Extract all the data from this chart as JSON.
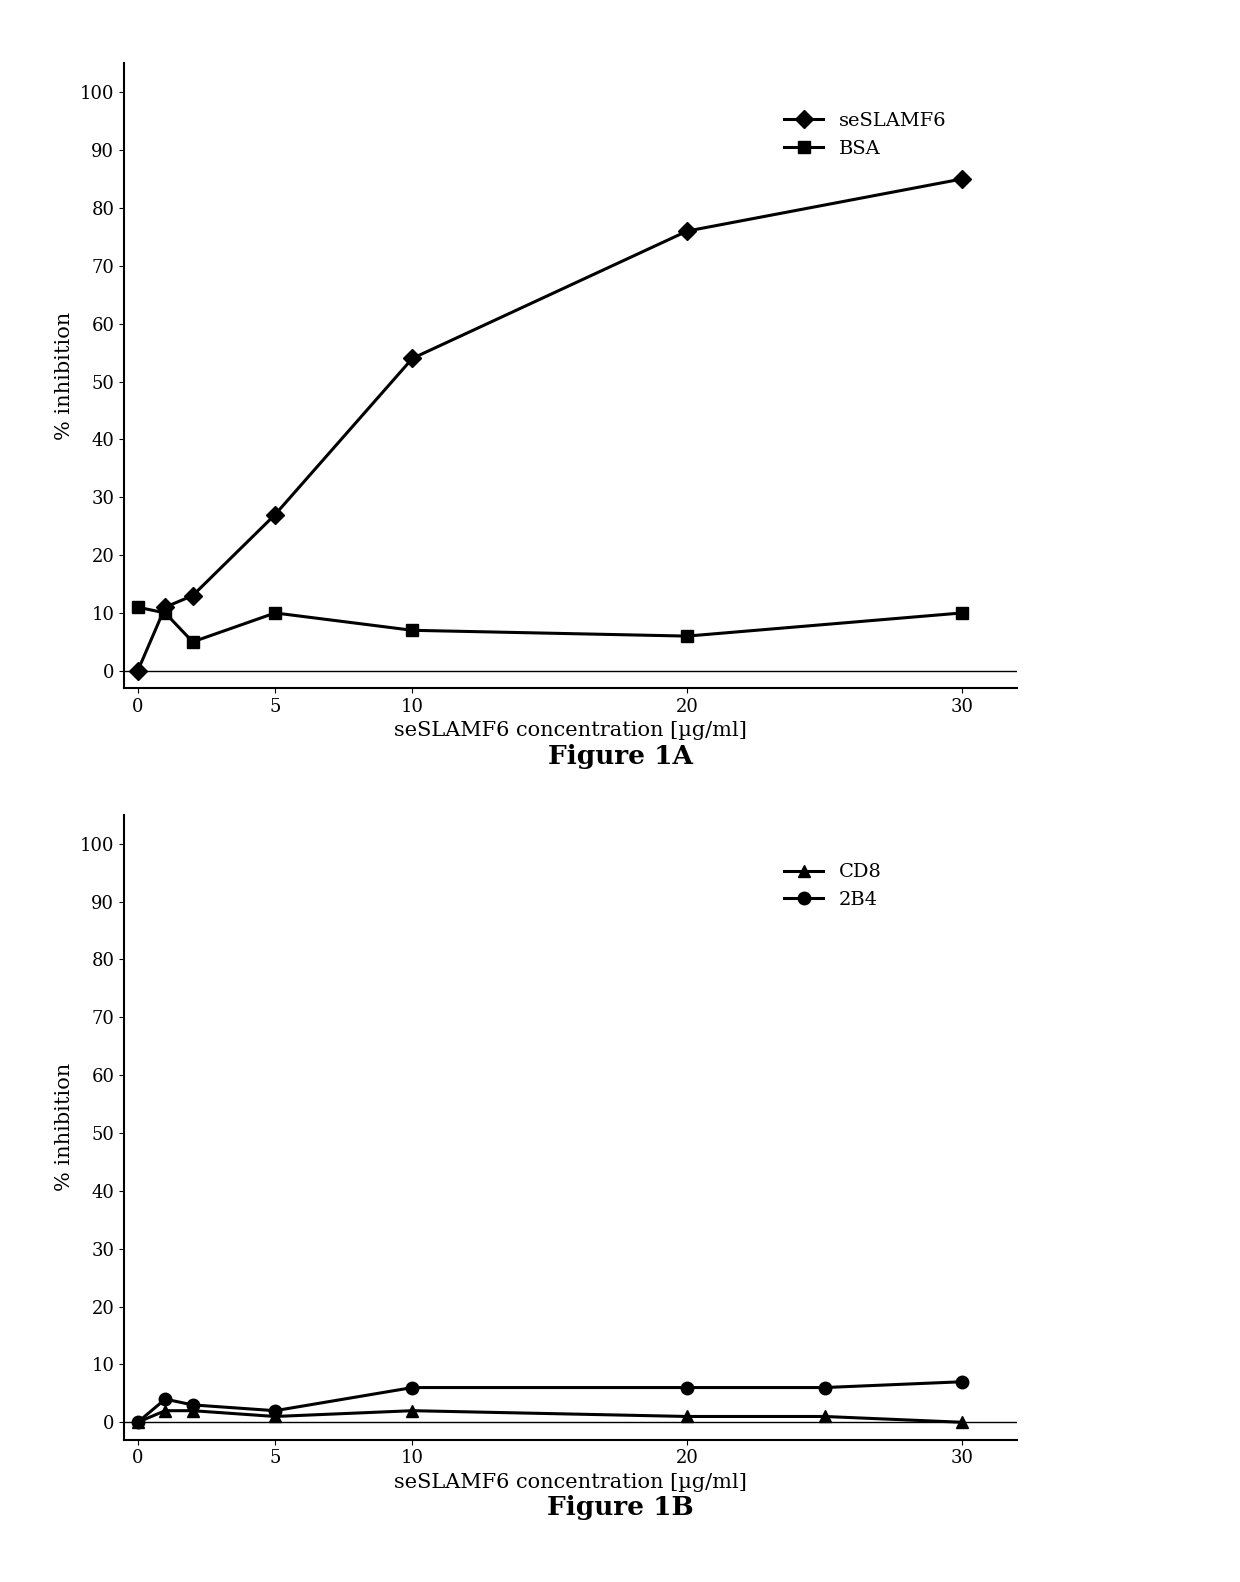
{
  "fig1A": {
    "seSLAMF6_x": [
      0,
      1,
      2,
      5,
      10,
      20,
      30
    ],
    "seSLAMF6_y": [
      0,
      11,
      13,
      27,
      54,
      76,
      85
    ],
    "BSA_x": [
      0,
      1,
      2,
      5,
      10,
      20,
      30
    ],
    "BSA_y": [
      11,
      10,
      5,
      10,
      7,
      6,
      10
    ],
    "xlabel": "seSLAMF6 concentration [µg/ml]",
    "ylabel": "% inhibition",
    "yticks": [
      0,
      10,
      20,
      30,
      40,
      50,
      60,
      70,
      80,
      90,
      100
    ],
    "xticks": [
      0,
      5,
      10,
      20,
      30
    ],
    "xlim": [
      -0.5,
      32
    ],
    "ylim": [
      -3,
      105
    ],
    "legend": [
      "seSLAMF6",
      "BSA"
    ],
    "caption": "Figure 1A"
  },
  "fig1B": {
    "CD8_x": [
      0,
      1,
      2,
      5,
      10,
      20,
      25,
      30
    ],
    "CD8_y": [
      0,
      2,
      2,
      1,
      2,
      1,
      1,
      0
    ],
    "B2B4_x": [
      0,
      1,
      2,
      5,
      10,
      20,
      25,
      30
    ],
    "B2B4_y": [
      0,
      4,
      3,
      2,
      6,
      6,
      6,
      7
    ],
    "xlabel": "seSLAMF6 concentration [µg/ml]",
    "ylabel": "% inhibition",
    "yticks": [
      0,
      10,
      20,
      30,
      40,
      50,
      60,
      70,
      80,
      90,
      100
    ],
    "xticks": [
      0,
      5,
      10,
      20,
      30
    ],
    "xlim": [
      -0.5,
      32
    ],
    "ylim": [
      -3,
      105
    ],
    "legend": [
      "CD8",
      "2B4"
    ],
    "caption": "Figure 1B"
  },
  "line_color": "#000000",
  "marker_diamond": "D",
  "marker_square": "s",
  "marker_triangle": "^",
  "marker_circle": "o",
  "marker_size": 9,
  "linewidth": 2.2,
  "bg_color": "#ffffff",
  "font_family": "serif",
  "caption_fontsize": 19,
  "axis_label_fontsize": 15,
  "tick_fontsize": 13,
  "legend_fontsize": 14
}
